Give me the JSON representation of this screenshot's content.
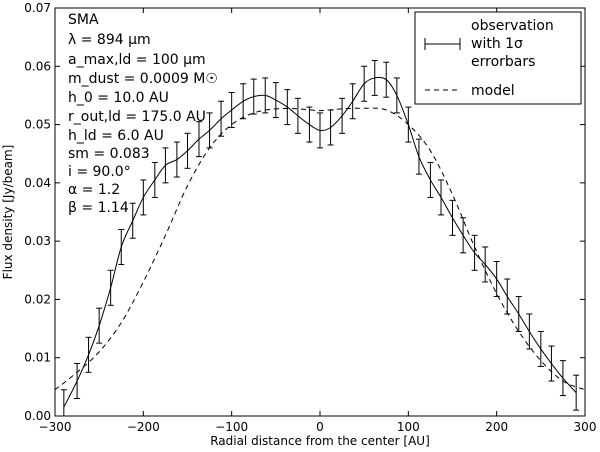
{
  "chart_data": {
    "type": "line",
    "title": "",
    "xlabel": "Radial distance from the center [AU]",
    "ylabel": "Flux density [Jy/beam]",
    "xlim": [
      -300,
      300
    ],
    "ylim": [
      0.0,
      0.07
    ],
    "xticks": [
      -300,
      -200,
      -100,
      0,
      100,
      200,
      300
    ],
    "xtick_labels": [
      "−300",
      "−200",
      "−100",
      "0",
      "100",
      "200",
      "300"
    ],
    "yticks": [
      0.0,
      0.01,
      0.02,
      0.03,
      0.04,
      0.05,
      0.06,
      0.07
    ],
    "ytick_labels": [
      "0.00",
      "0.01",
      "0.02",
      "0.03",
      "0.04",
      "0.05",
      "0.06",
      "0.07"
    ],
    "grid": false,
    "legend_position": "top-right",
    "legend": [
      "observation with 1σ errorbars",
      "model"
    ],
    "annotations": [
      "SMA",
      "λ = 894 μm",
      "a_max,ld = 100 μm",
      "m_dust = 0.0009 M☉",
      "h_0 = 10.0 AU",
      "r_out,ld = 175.0 AU",
      "h_ld = 6.0 AU",
      "sm = 0.083",
      "i = 90.0°",
      "α = 1.2",
      "β = 1.14"
    ],
    "series": [
      {
        "name": "observation",
        "style": "solid-errorbars",
        "x": [
          -290,
          -275,
          -262,
          -250,
          -237,
          -225,
          -212,
          -200,
          -187,
          -175,
          -162,
          -150,
          -137,
          -125,
          -112,
          -100,
          -87,
          -75,
          -62,
          -50,
          -37,
          -25,
          -12,
          0,
          12,
          25,
          37,
          50,
          62,
          75,
          87,
          100,
          112,
          125,
          137,
          150,
          162,
          175,
          187,
          200,
          212,
          225,
          237,
          250,
          262,
          275,
          290
        ],
        "y": [
          0.0015,
          0.006,
          0.0105,
          0.0155,
          0.022,
          0.029,
          0.0335,
          0.0375,
          0.0405,
          0.043,
          0.044,
          0.0455,
          0.0475,
          0.049,
          0.051,
          0.0525,
          0.054,
          0.0548,
          0.055,
          0.0542,
          0.053,
          0.0515,
          0.05,
          0.049,
          0.0495,
          0.0515,
          0.054,
          0.057,
          0.058,
          0.0577,
          0.055,
          0.05,
          0.0445,
          0.0405,
          0.0375,
          0.034,
          0.031,
          0.028,
          0.026,
          0.0235,
          0.0205,
          0.0175,
          0.0145,
          0.0115,
          0.009,
          0.0065,
          0.004
        ],
        "err": [
          0.003,
          0.003,
          0.003,
          0.003,
          0.003,
          0.003,
          0.003,
          0.003,
          0.003,
          0.003,
          0.003,
          0.003,
          0.003,
          0.003,
          0.003,
          0.003,
          0.003,
          0.003,
          0.003,
          0.003,
          0.003,
          0.003,
          0.003,
          0.003,
          0.003,
          0.003,
          0.003,
          0.003,
          0.003,
          0.003,
          0.003,
          0.003,
          0.003,
          0.003,
          0.003,
          0.003,
          0.003,
          0.003,
          0.003,
          0.003,
          0.003,
          0.003,
          0.003,
          0.003,
          0.003,
          0.003,
          0.003
        ]
      },
      {
        "name": "model",
        "style": "dashed",
        "x": [
          -300,
          -275,
          -250,
          -225,
          -200,
          -175,
          -150,
          -125,
          -100,
          -75,
          -50,
          -25,
          0,
          25,
          50,
          75,
          100,
          125,
          150,
          175,
          200,
          225,
          250,
          275,
          300
        ],
        "y": [
          0.0045,
          0.0075,
          0.011,
          0.016,
          0.023,
          0.031,
          0.0395,
          0.046,
          0.05,
          0.052,
          0.0527,
          0.0527,
          0.0524,
          0.0527,
          0.0528,
          0.0525,
          0.05,
          0.0455,
          0.038,
          0.029,
          0.021,
          0.0145,
          0.0095,
          0.006,
          0.0045
        ]
      }
    ]
  }
}
